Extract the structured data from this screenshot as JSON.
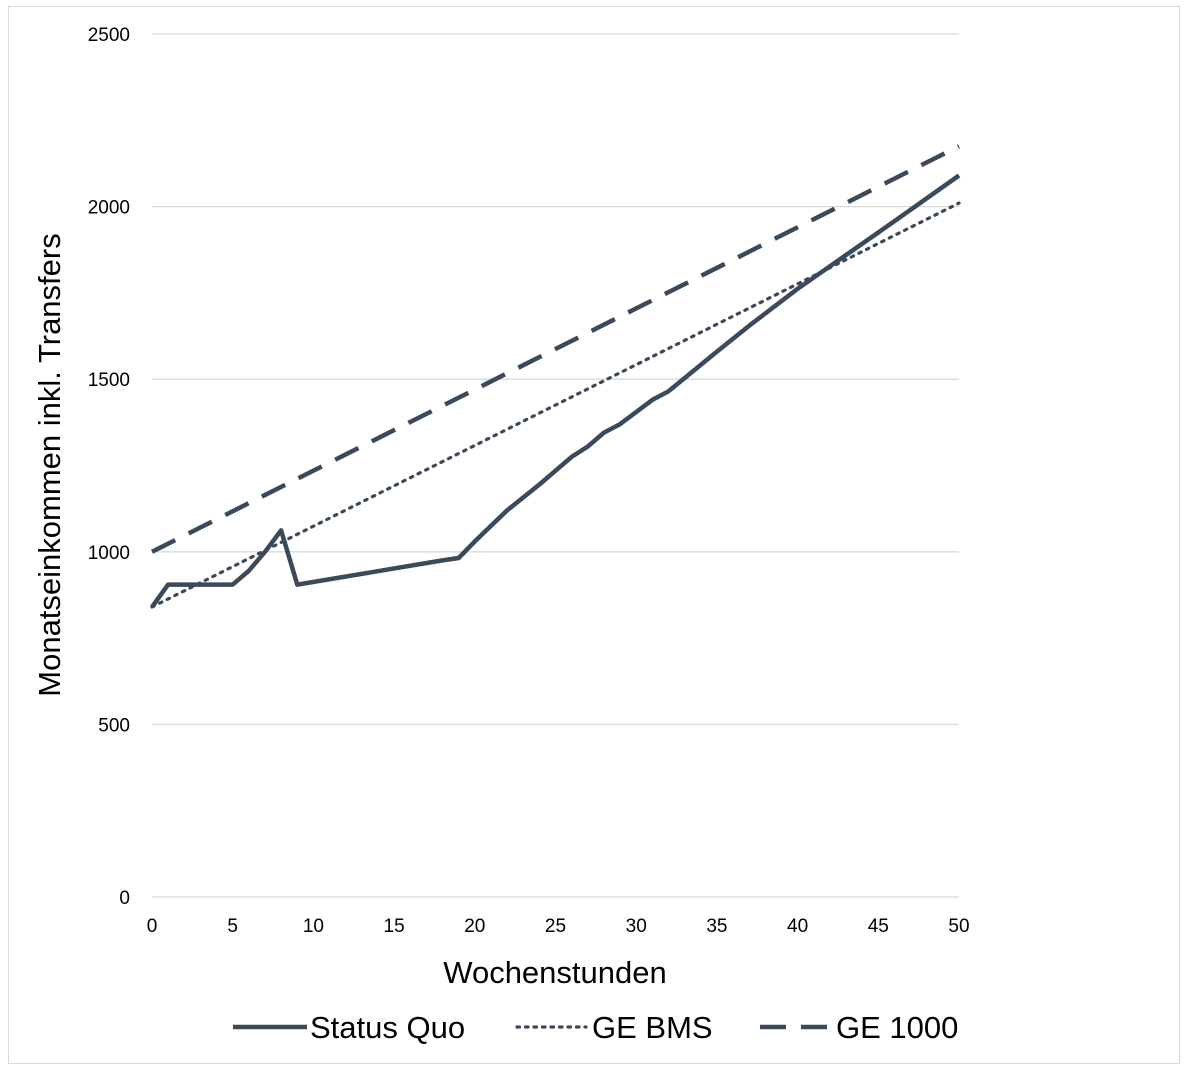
{
  "chart_data": {
    "type": "line",
    "title": "",
    "xlabel": "Wochenstunden",
    "ylabel": "Monatseinkommen inkl. Transfers",
    "xlim": [
      0,
      50
    ],
    "ylim": [
      0,
      2500
    ],
    "x_ticks": [
      "0",
      "5",
      "10",
      "15",
      "20",
      "25",
      "30",
      "35",
      "40",
      "45",
      "50"
    ],
    "y_ticks": [
      "0",
      "500",
      "1000",
      "1500",
      "2000",
      "2500"
    ],
    "grid": "horizontal",
    "legend_position": "bottom",
    "series": [
      {
        "name": "Status Quo",
        "style": "solid",
        "color": "#3a4a5a",
        "points": [
          [
            0,
            840
          ],
          [
            1,
            905
          ],
          [
            2,
            905
          ],
          [
            3,
            905
          ],
          [
            4,
            905
          ],
          [
            5,
            905
          ],
          [
            6,
            945
          ],
          [
            7,
            1000
          ],
          [
            8,
            1062
          ],
          [
            9,
            905
          ],
          [
            18,
            975
          ],
          [
            19,
            982
          ],
          [
            20,
            1030
          ],
          [
            22,
            1120
          ],
          [
            24,
            1195
          ],
          [
            26,
            1275
          ],
          [
            27,
            1305
          ],
          [
            28,
            1345
          ],
          [
            29,
            1370
          ],
          [
            31,
            1440
          ],
          [
            32,
            1465
          ],
          [
            35,
            1580
          ],
          [
            37,
            1655
          ],
          [
            40,
            1762
          ],
          [
            45,
            1925
          ],
          [
            50,
            2090
          ]
        ]
      },
      {
        "name": "GE BMS",
        "style": "dotted",
        "color": "#3a4a5a",
        "points": [
          [
            0,
            840
          ],
          [
            50,
            2010
          ]
        ]
      },
      {
        "name": "GE 1000",
        "style": "dashed",
        "color": "#3a4a5a",
        "points": [
          [
            0,
            1000
          ],
          [
            50,
            2175
          ]
        ]
      }
    ]
  }
}
